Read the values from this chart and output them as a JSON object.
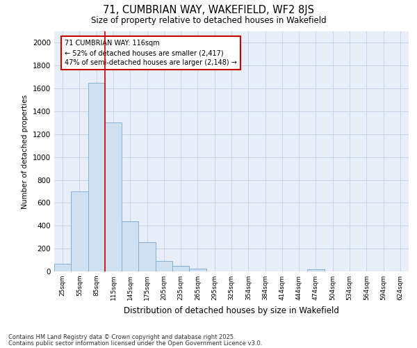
{
  "title1": "71, CUMBRIAN WAY, WAKEFIELD, WF2 8JS",
  "title2": "Size of property relative to detached houses in Wakefield",
  "xlabel": "Distribution of detached houses by size in Wakefield",
  "ylabel": "Number of detached properties",
  "categories": [
    "25sqm",
    "55sqm",
    "85sqm",
    "115sqm",
    "145sqm",
    "175sqm",
    "205sqm",
    "235sqm",
    "265sqm",
    "295sqm",
    "325sqm",
    "354sqm",
    "384sqm",
    "414sqm",
    "444sqm",
    "474sqm",
    "504sqm",
    "534sqm",
    "564sqm",
    "594sqm",
    "624sqm"
  ],
  "values": [
    65,
    700,
    1650,
    1300,
    440,
    255,
    90,
    50,
    25,
    0,
    0,
    0,
    0,
    0,
    0,
    20,
    0,
    0,
    0,
    0,
    0
  ],
  "bar_color": "#d0dff0",
  "bar_edge_color": "#7aa8cc",
  "vline_color": "#cc0000",
  "vline_x": 2.5,
  "annotation_text": "71 CUMBRIAN WAY: 116sqm\n← 52% of detached houses are smaller (2,417)\n47% of semi-detached houses are larger (2,148) →",
  "annotation_box_color": "#ffffff",
  "annotation_box_edge": "#cc0000",
  "grid_color": "#c5d5e8",
  "background_color": "#e8eef8",
  "footer1": "Contains HM Land Registry data © Crown copyright and database right 2025.",
  "footer2": "Contains public sector information licensed under the Open Government Licence v3.0.",
  "ylim": [
    0,
    2100
  ],
  "yticks": [
    0,
    200,
    400,
    600,
    800,
    1000,
    1200,
    1400,
    1600,
    1800,
    2000
  ]
}
